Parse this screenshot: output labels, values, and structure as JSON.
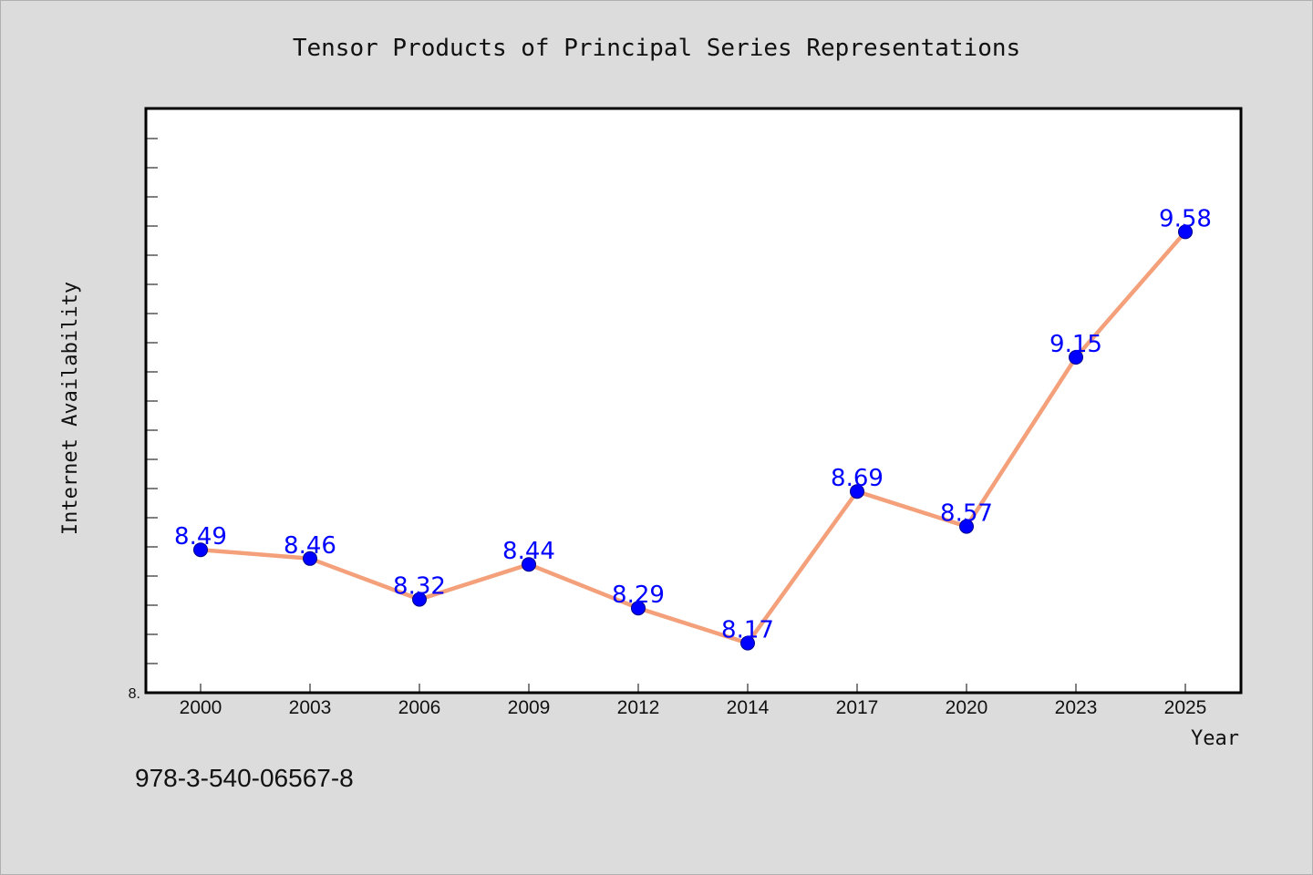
{
  "chart_data": {
    "type": "line",
    "title": "Tensor Products of Principal Series Representations",
    "xlabel": "Year",
    "ylabel": "Internet Availability",
    "categories": [
      "2000",
      "2003",
      "2006",
      "2009",
      "2012",
      "2014",
      "2017",
      "2020",
      "2023",
      "2025"
    ],
    "series": [
      {
        "values": [
          8.49,
          8.46,
          8.32,
          8.44,
          8.29,
          8.17,
          8.69,
          8.57,
          9.15,
          9.58
        ],
        "data_labels": [
          "8.49",
          "8.46",
          "8.32",
          "8.44",
          "8.29",
          "8.17",
          "8.69",
          "8.57",
          "9.15",
          "9.58"
        ]
      }
    ],
    "ylim": [
      8.0,
      10.0
    ],
    "y_tick_labels": [
      {
        "value": 8.0,
        "label": "8."
      }
    ],
    "y_minor_step": 0.1,
    "grid": false,
    "line_color": "#f4a07a",
    "marker_color": "#0000ff",
    "data_label_color": "#0000ff"
  },
  "footer": {
    "isbn": "978-3-540-06567-8"
  }
}
